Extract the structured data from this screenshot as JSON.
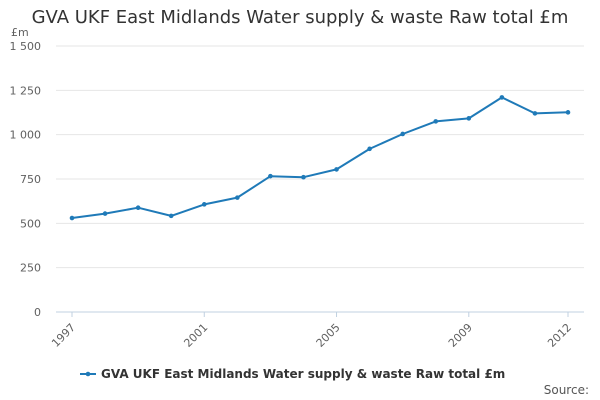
{
  "chart_data": {
    "type": "line",
    "title": "GVA UKF East Midlands Water supply & waste Raw total £m",
    "ylabel": "£m",
    "xlabel": "",
    "ylim": [
      0,
      1500
    ],
    "y_ticks": [
      0,
      250,
      500,
      750,
      1000,
      1250,
      1500
    ],
    "y_tick_labels": [
      "0",
      "250",
      "500",
      "750",
      "1 000",
      "1 250",
      "1 500"
    ],
    "x": [
      1997,
      1998,
      1999,
      2000,
      2001,
      2002,
      2003,
      2004,
      2005,
      2006,
      2007,
      2008,
      2009,
      2010,
      2011,
      2012
    ],
    "x_tick_labels": [
      "1997",
      "2001",
      "2005",
      "2009",
      "2012"
    ],
    "grid": true,
    "legend_position": "bottom-left",
    "series": [
      {
        "name": "GVA UKF East Midlands Water supply & waste Raw total £m",
        "color": "#1f7ab8",
        "values": [
          530,
          555,
          588,
          542,
          607,
          645,
          766,
          760,
          804,
          920,
          1004,
          1075,
          1092,
          1210,
          1120,
          1126
        ]
      }
    ],
    "source_label": "Source:"
  }
}
